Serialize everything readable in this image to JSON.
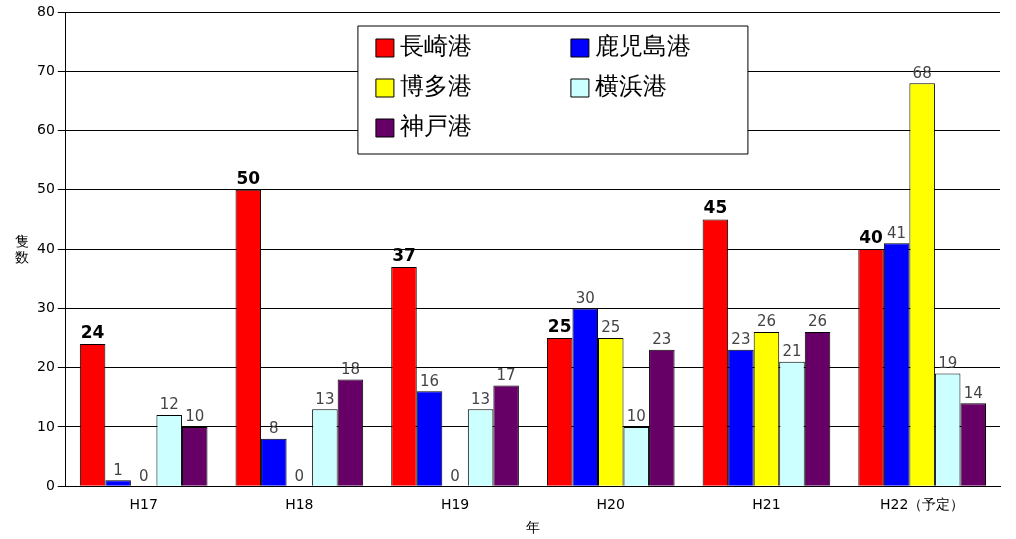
{
  "chart_data": {
    "type": "bar",
    "categories": [
      "H17",
      "H18",
      "H19",
      "H20",
      "H21",
      "H22（予定）"
    ],
    "series": [
      {
        "name": "長崎港",
        "color": "#ff0000",
        "values": [
          24,
          50,
          37,
          25,
          45,
          40
        ]
      },
      {
        "name": "鹿児島港",
        "color": "#0000ff",
        "values": [
          1,
          8,
          16,
          30,
          23,
          41
        ]
      },
      {
        "name": "博多港",
        "color": "#ffff00",
        "values": [
          0,
          0,
          0,
          25,
          26,
          68
        ]
      },
      {
        "name": "横浜港",
        "color": "#ccffff",
        "values": [
          12,
          13,
          13,
          10,
          21,
          19
        ]
      },
      {
        "name": "神戸港",
        "color": "#660066",
        "values": [
          10,
          18,
          17,
          23,
          26,
          14
        ]
      }
    ],
    "xlabel": "年",
    "ylabel": "隻数",
    "ylim": [
      0,
      80
    ],
    "yticks": [
      0,
      10,
      20,
      30,
      40,
      50,
      60,
      70,
      80
    ],
    "grid": "y",
    "legend": "top",
    "data_labels": true
  }
}
